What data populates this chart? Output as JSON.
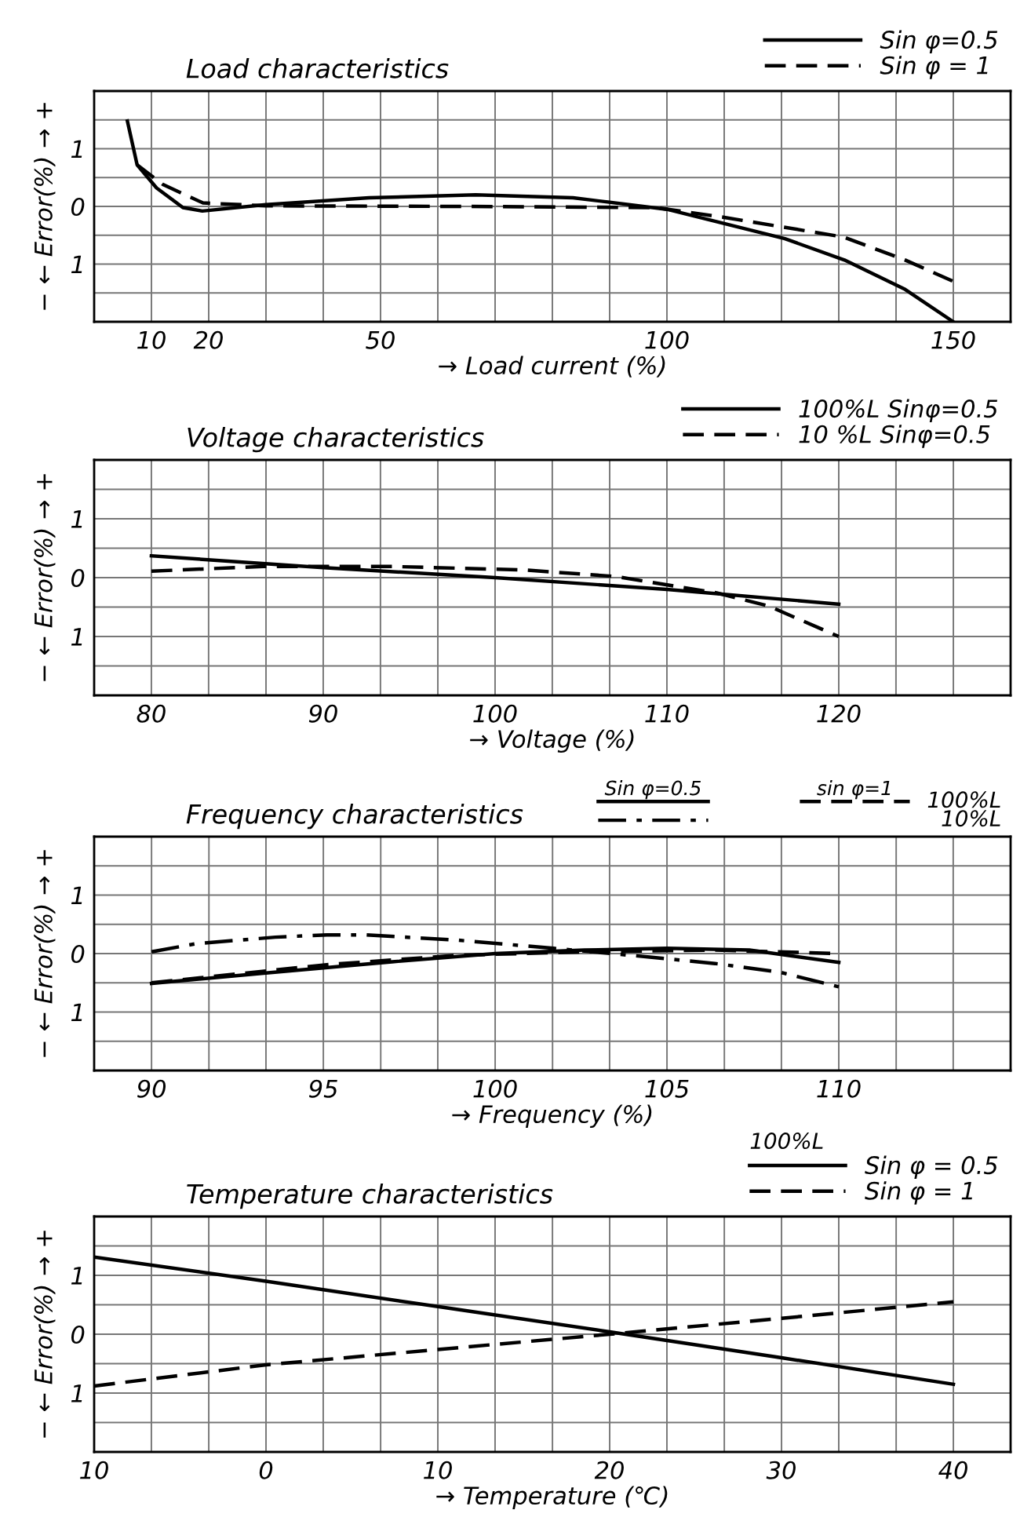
{
  "chart_data": [
    {
      "type": "line",
      "title": "Load characteristics",
      "xlabel": "→ Load current (%)",
      "ylabel": "− ← Error(%) → +",
      "xlim": [
        0,
        160
      ],
      "ylim": [
        -2,
        2
      ],
      "xticks": [
        10,
        20,
        {
          "value": 30,
          "label": null
        },
        {
          "value": 40,
          "label": null
        },
        50,
        {
          "value": 60,
          "label": null
        },
        {
          "value": 70,
          "label": null
        },
        {
          "value": 80,
          "label": null
        },
        {
          "value": 90,
          "label": null
        },
        100,
        {
          "value": 110,
          "label": null
        },
        {
          "value": 120,
          "label": null
        },
        {
          "value": 130,
          "label": null
        },
        {
          "value": 140,
          "label": null
        },
        150
      ],
      "yticks": [
        {
          "value": -1.5,
          "label": null
        },
        {
          "value": -1,
          "label": "1"
        },
        {
          "value": -0.5,
          "label": null
        },
        0,
        {
          "value": 0.5,
          "label": null
        },
        {
          "value": 1,
          "label": "1"
        },
        {
          "value": 1.5,
          "label": null
        }
      ],
      "grid": true,
      "legend": "top right",
      "series": [
        {
          "name": "Sin φ=0.5",
          "color": "#000000",
          "line_style": "solid",
          "x": [
            5.8,
            7.5,
            10.9,
            15.5,
            18.9,
            30,
            48,
            66.6,
            83.6,
            100,
            120.6,
            131,
            141.6,
            150
          ],
          "values": [
            1.48,
            0.72,
            0.32,
            -0.02,
            -0.08,
            0.03,
            0.15,
            0.2,
            0.15,
            -0.05,
            -0.56,
            -0.93,
            -1.44,
            -2.0
          ]
        },
        {
          "name": "Sin φ = 1",
          "color": "#000000",
          "line_style": "dashed",
          "x": [
            7.5,
            12,
            19,
            30,
            64,
            98,
            110,
            130.8,
            141.6,
            150
          ],
          "values": [
            0.72,
            0.38,
            0.06,
            0.01,
            0,
            -0.02,
            -0.19,
            -0.53,
            -0.93,
            -1.3
          ]
        }
      ]
    },
    {
      "type": "line",
      "title": "Voltage characteristics",
      "xlabel": "→ Voltage (%)",
      "ylabel": "− ← Error(%) → +",
      "xlim": [
        76.67,
        130
      ],
      "ylim": [
        -2,
        2
      ],
      "xticks": [
        80,
        {
          "value": 83.33,
          "label": null
        },
        {
          "value": 86.67,
          "label": null
        },
        90,
        {
          "value": 93.33,
          "label": null
        },
        {
          "value": 96.67,
          "label": null
        },
        100,
        {
          "value": 103.33,
          "label": null
        },
        {
          "value": 106.67,
          "label": null
        },
        110,
        {
          "value": 113.33,
          "label": null
        },
        {
          "value": 116.67,
          "label": null
        },
        120,
        {
          "value": 123.33,
          "label": null
        },
        {
          "value": 126.67,
          "label": null
        }
      ],
      "yticks": [
        {
          "value": -1.5,
          "label": null
        },
        {
          "value": -1,
          "label": "1"
        },
        {
          "value": -0.5,
          "label": null
        },
        0,
        {
          "value": 0.5,
          "label": null
        },
        {
          "value": 1,
          "label": "1"
        },
        {
          "value": 1.5,
          "label": null
        }
      ],
      "grid": true,
      "legend": "top right",
      "series": [
        {
          "name": "100%L Sinφ=0.5",
          "color": "#000000",
          "line_style": "solid",
          "x": [
            80,
            90,
            100,
            110,
            120
          ],
          "values": [
            0.37,
            0.17,
            0,
            -0.2,
            -0.45
          ]
        },
        {
          "name": "10 %L Sinφ=0.5",
          "color": "#000000",
          "line_style": "dashed",
          "x": [
            80,
            86.5,
            94,
            101.7,
            107,
            112.9,
            115.9,
            120
          ],
          "values": [
            0.11,
            0.19,
            0.19,
            0.13,
            0.02,
            -0.26,
            -0.48,
            -1.0
          ]
        }
      ]
    },
    {
      "type": "line",
      "title": "Frequency characteristics",
      "xlabel": "→ Frequency (%)",
      "ylabel": "− ← Error(%) → +",
      "xlim": [
        88.33,
        115
      ],
      "ylim": [
        -2,
        2
      ],
      "xticks": [
        90,
        {
          "value": 91.67,
          "label": null
        },
        {
          "value": 93.33,
          "label": null
        },
        95,
        {
          "value": 96.67,
          "label": null
        },
        {
          "value": 98.33,
          "label": null
        },
        100,
        {
          "value": 101.67,
          "label": null
        },
        {
          "value": 103.33,
          "label": null
        },
        105,
        {
          "value": 106.67,
          "label": null
        },
        {
          "value": 108.33,
          "label": null
        },
        110,
        {
          "value": 111.67,
          "label": null
        },
        {
          "value": 113.33,
          "label": null
        }
      ],
      "yticks": [
        {
          "value": -1.5,
          "label": null
        },
        {
          "value": -1,
          "label": "1"
        },
        {
          "value": -0.5,
          "label": null
        },
        0,
        {
          "value": 0.5,
          "label": null
        },
        {
          "value": 1,
          "label": "1"
        },
        {
          "value": 1.5,
          "label": null
        }
      ],
      "grid": true,
      "legend": "top right",
      "annotations": [
        "Sin φ=0.5",
        "sin φ=1",
        "100%L",
        "10%L"
      ],
      "series": [
        {
          "color": "#000000",
          "line_style": "solid",
          "x": [
            90,
            93.2,
            97,
            100,
            102.6,
            105,
            107.4,
            110
          ],
          "values": [
            -0.51,
            -0.34,
            -0.14,
            0,
            0.06,
            0.09,
            0.06,
            -0.15
          ]
        },
        {
          "color": "#000000",
          "line_style": "dashdot",
          "x": [
            90,
            91.3,
            93.6,
            95.1,
            96.2,
            98.9,
            101.7,
            104.5,
            106.4,
            108.3,
            110
          ],
          "values": [
            0.03,
            0.17,
            0.28,
            0.32,
            0.32,
            0.23,
            0.09,
            -0.06,
            -0.17,
            -0.32,
            -0.57
          ]
        },
        {
          "color": "#000000",
          "line_style": "dashed",
          "x": [
            90,
            95.1,
            98.9,
            102.6,
            106.4,
            110
          ],
          "values": [
            -0.5,
            -0.19,
            -0.03,
            0.03,
            0.06,
            0
          ]
        }
      ]
    },
    {
      "type": "line",
      "title": "Temperature characteristics",
      "xlabel": "→ Temperature (℃)",
      "ylabel": "− ← Error(%) → +",
      "legend_title": "100%L",
      "xlim": [
        -10,
        43.33
      ],
      "ylim": [
        -2,
        2
      ],
      "xticks": [
        {
          "value": -10,
          "label": "10"
        },
        {
          "value": -6.67,
          "label": null
        },
        {
          "value": -3.33,
          "label": null
        },
        0,
        {
          "value": 3.33,
          "label": null
        },
        {
          "value": 6.67,
          "label": null
        },
        10,
        {
          "value": 13.33,
          "label": null
        },
        {
          "value": 16.67,
          "label": null
        },
        20,
        {
          "value": 23.33,
          "label": null
        },
        {
          "value": 26.67,
          "label": null
        },
        30,
        {
          "value": 33.33,
          "label": null
        },
        {
          "value": 36.67,
          "label": null
        },
        40
      ],
      "yticks": [
        {
          "value": -1.5,
          "label": null
        },
        {
          "value": -1,
          "label": "1"
        },
        {
          "value": -0.5,
          "label": null
        },
        0,
        {
          "value": 0.5,
          "label": null
        },
        {
          "value": 1,
          "label": "1"
        },
        {
          "value": 1.5,
          "label": null
        }
      ],
      "grid": true,
      "legend": "top right",
      "series": [
        {
          "name": "Sin φ = 0.5",
          "color": "#000000",
          "line_style": "solid",
          "x": [
            -10,
            0,
            10,
            20,
            30,
            40
          ],
          "values": [
            1.31,
            0.9,
            0.47,
            0.04,
            -0.4,
            -0.85
          ]
        },
        {
          "name": "Sin φ = 1",
          "color": "#000000",
          "line_style": "dashed",
          "x": [
            -10,
            0,
            10,
            20,
            30,
            40
          ],
          "values": [
            -0.88,
            -0.52,
            -0.26,
            0,
            0.27,
            0.55
          ]
        }
      ]
    }
  ]
}
